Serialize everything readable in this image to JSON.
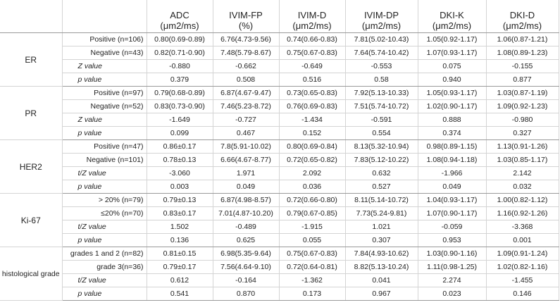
{
  "headers": [
    {
      "line1": "ADC",
      "line2": "(μm2/ms)"
    },
    {
      "line1": "IVIM-FP",
      "line2": "(%)"
    },
    {
      "line1": "IVIM-D",
      "line2": "(μm2/ms)"
    },
    {
      "line1": "IVIM-DP",
      "line2": "(μm2/ms)"
    },
    {
      "line1": "DKI-K",
      "line2": "(μm2/ms)"
    },
    {
      "line1": "DKI-D",
      "line2": "(μm2/ms)"
    }
  ],
  "groups": [
    {
      "name": "ER",
      "rows": [
        {
          "label": "Positive (n=106)",
          "values": [
            "0.80(0.69-0.89)",
            "6.76(4.73-9.56)",
            "0.74(0.66-0.83)",
            "7.81(5.02-10.43)",
            "1.05(0.92-1.17)",
            "1.06(0.87-1.21)"
          ]
        },
        {
          "label": "Negative (n=43)",
          "values": [
            "0.82(0.71-0.90)",
            "7.48(5.79-8.67)",
            "0.75(0.67-0.83)",
            "7.64(5.74-10.42)",
            "1.07(0.93-1.17)",
            "1.08(0.89-1.23)"
          ]
        },
        {
          "label": "Z value",
          "values": [
            "-0.880",
            "-0.662",
            "-0.649",
            "-0.553",
            "0.075",
            "-0.155"
          ]
        },
        {
          "label": "p value",
          "values": [
            "0.379",
            "0.508",
            "0.516",
            "0.58",
            "0.940",
            "0.877"
          ]
        }
      ]
    },
    {
      "name": "PR",
      "rows": [
        {
          "label": "Positive (n=97)",
          "values": [
            "0.79(0.68-0.89)",
            "6.87(4.67-9.47)",
            "0.73(0.65-0.83)",
            "7.92(5.13-10.33)",
            "1.05(0.93-1.17)",
            "1.03(0.87-1.19)"
          ]
        },
        {
          "label": "Negative (n=52)",
          "values": [
            "0.83(0.73-0.90)",
            "7.46(5.23-8.72)",
            "0.76(0.69-0.83)",
            "7.51(5.74-10.72)",
            "1.02(0.90-1.17)",
            "1.09(0.92-1.23)"
          ]
        },
        {
          "label": "Z value",
          "values": [
            "-1.649",
            "-0.727",
            "-1.434",
            "-0.591",
            "0.888",
            "-0.980"
          ]
        },
        {
          "label": "p value",
          "values": [
            "0.099",
            "0.467",
            "0.152",
            "0.554",
            "0.374",
            "0.327"
          ]
        }
      ]
    },
    {
      "name": "HER2",
      "rows": [
        {
          "label": "Positive (n=47)",
          "values": [
            "0.86±0.17",
            "7.8(5.91-10.02)",
            "0.80(0.69-0.84)",
            "8.13(5.32-10.94)",
            "0.98(0.89-1.15)",
            "1.13(0.91-1.26)"
          ]
        },
        {
          "label": "Negative (n=101)",
          "values": [
            "0.78±0.13",
            "6.66(4.67-8.77)",
            "0.72(0.65-0.82)",
            "7.83(5.12-10.22)",
            "1.08(0.94-1.18)",
            "1.03(0.85-1.17)"
          ]
        },
        {
          "label": "t/Z value",
          "values": [
            "-3.060",
            "1.971",
            "2.092",
            "0.632",
            "-1.966",
            "2.142"
          ]
        },
        {
          "label": "p value",
          "values": [
            "0.003",
            "0.049",
            "0.036",
            "0.527",
            "0.049",
            "0.032"
          ]
        }
      ]
    },
    {
      "name": "Ki-67",
      "rows": [
        {
          "label": "> 20% (n=79)",
          "values": [
            "0.79±0.13",
            "6.87(4.98-8.57)",
            "0.72(0.66-0.80)",
            "8.11(5.14-10.72)",
            "1.04(0.93-1.17)",
            "1.00(0.82-1.12)"
          ]
        },
        {
          "label": "≤20% (n=70)",
          "values": [
            "0.83±0.17",
            "7.01(4.87-10.20)",
            "0.79(0.67-0.85)",
            "7.73(5.24-9.81)",
            "1.07(0.90-1.17)",
            "1.16(0.92-1.26)"
          ]
        },
        {
          "label": "t/Z value",
          "values": [
            "1.502",
            "-0.489",
            "-1.915",
            "1.021",
            "-0.059",
            "-3.368"
          ]
        },
        {
          "label": "p value",
          "values": [
            "0.136",
            "0.625",
            "0.055",
            "0.307",
            "0.953",
            "0.001"
          ]
        }
      ]
    },
    {
      "name": "histological grade",
      "rows": [
        {
          "label": "grades 1 and 2 (n=82)",
          "values": [
            "0.81±0.15",
            "6.98(5.35-9.64)",
            "0.75(0.67-0.83)",
            "7.84(4.93-10.62)",
            "1.03(0.90-1.16)",
            "1.09(0.91-1.24)"
          ]
        },
        {
          "label": "grade 3(n=36)",
          "values": [
            "0.79±0.17",
            "7.56(4.64-9.10)",
            "0.72(0.64-0.81)",
            "8.82(5.13-10.24)",
            "1.11(0.98-1.25)",
            "1.02(0.82-1.16)"
          ]
        },
        {
          "label": "t/Z value",
          "values": [
            "0.612",
            "-0.164",
            "-1.362",
            "0.041",
            "2.274",
            "-1.455"
          ]
        },
        {
          "label": "p value",
          "values": [
            "0.541",
            "0.870",
            "0.173",
            "0.967",
            "0.023",
            "0.146"
          ]
        }
      ]
    }
  ]
}
